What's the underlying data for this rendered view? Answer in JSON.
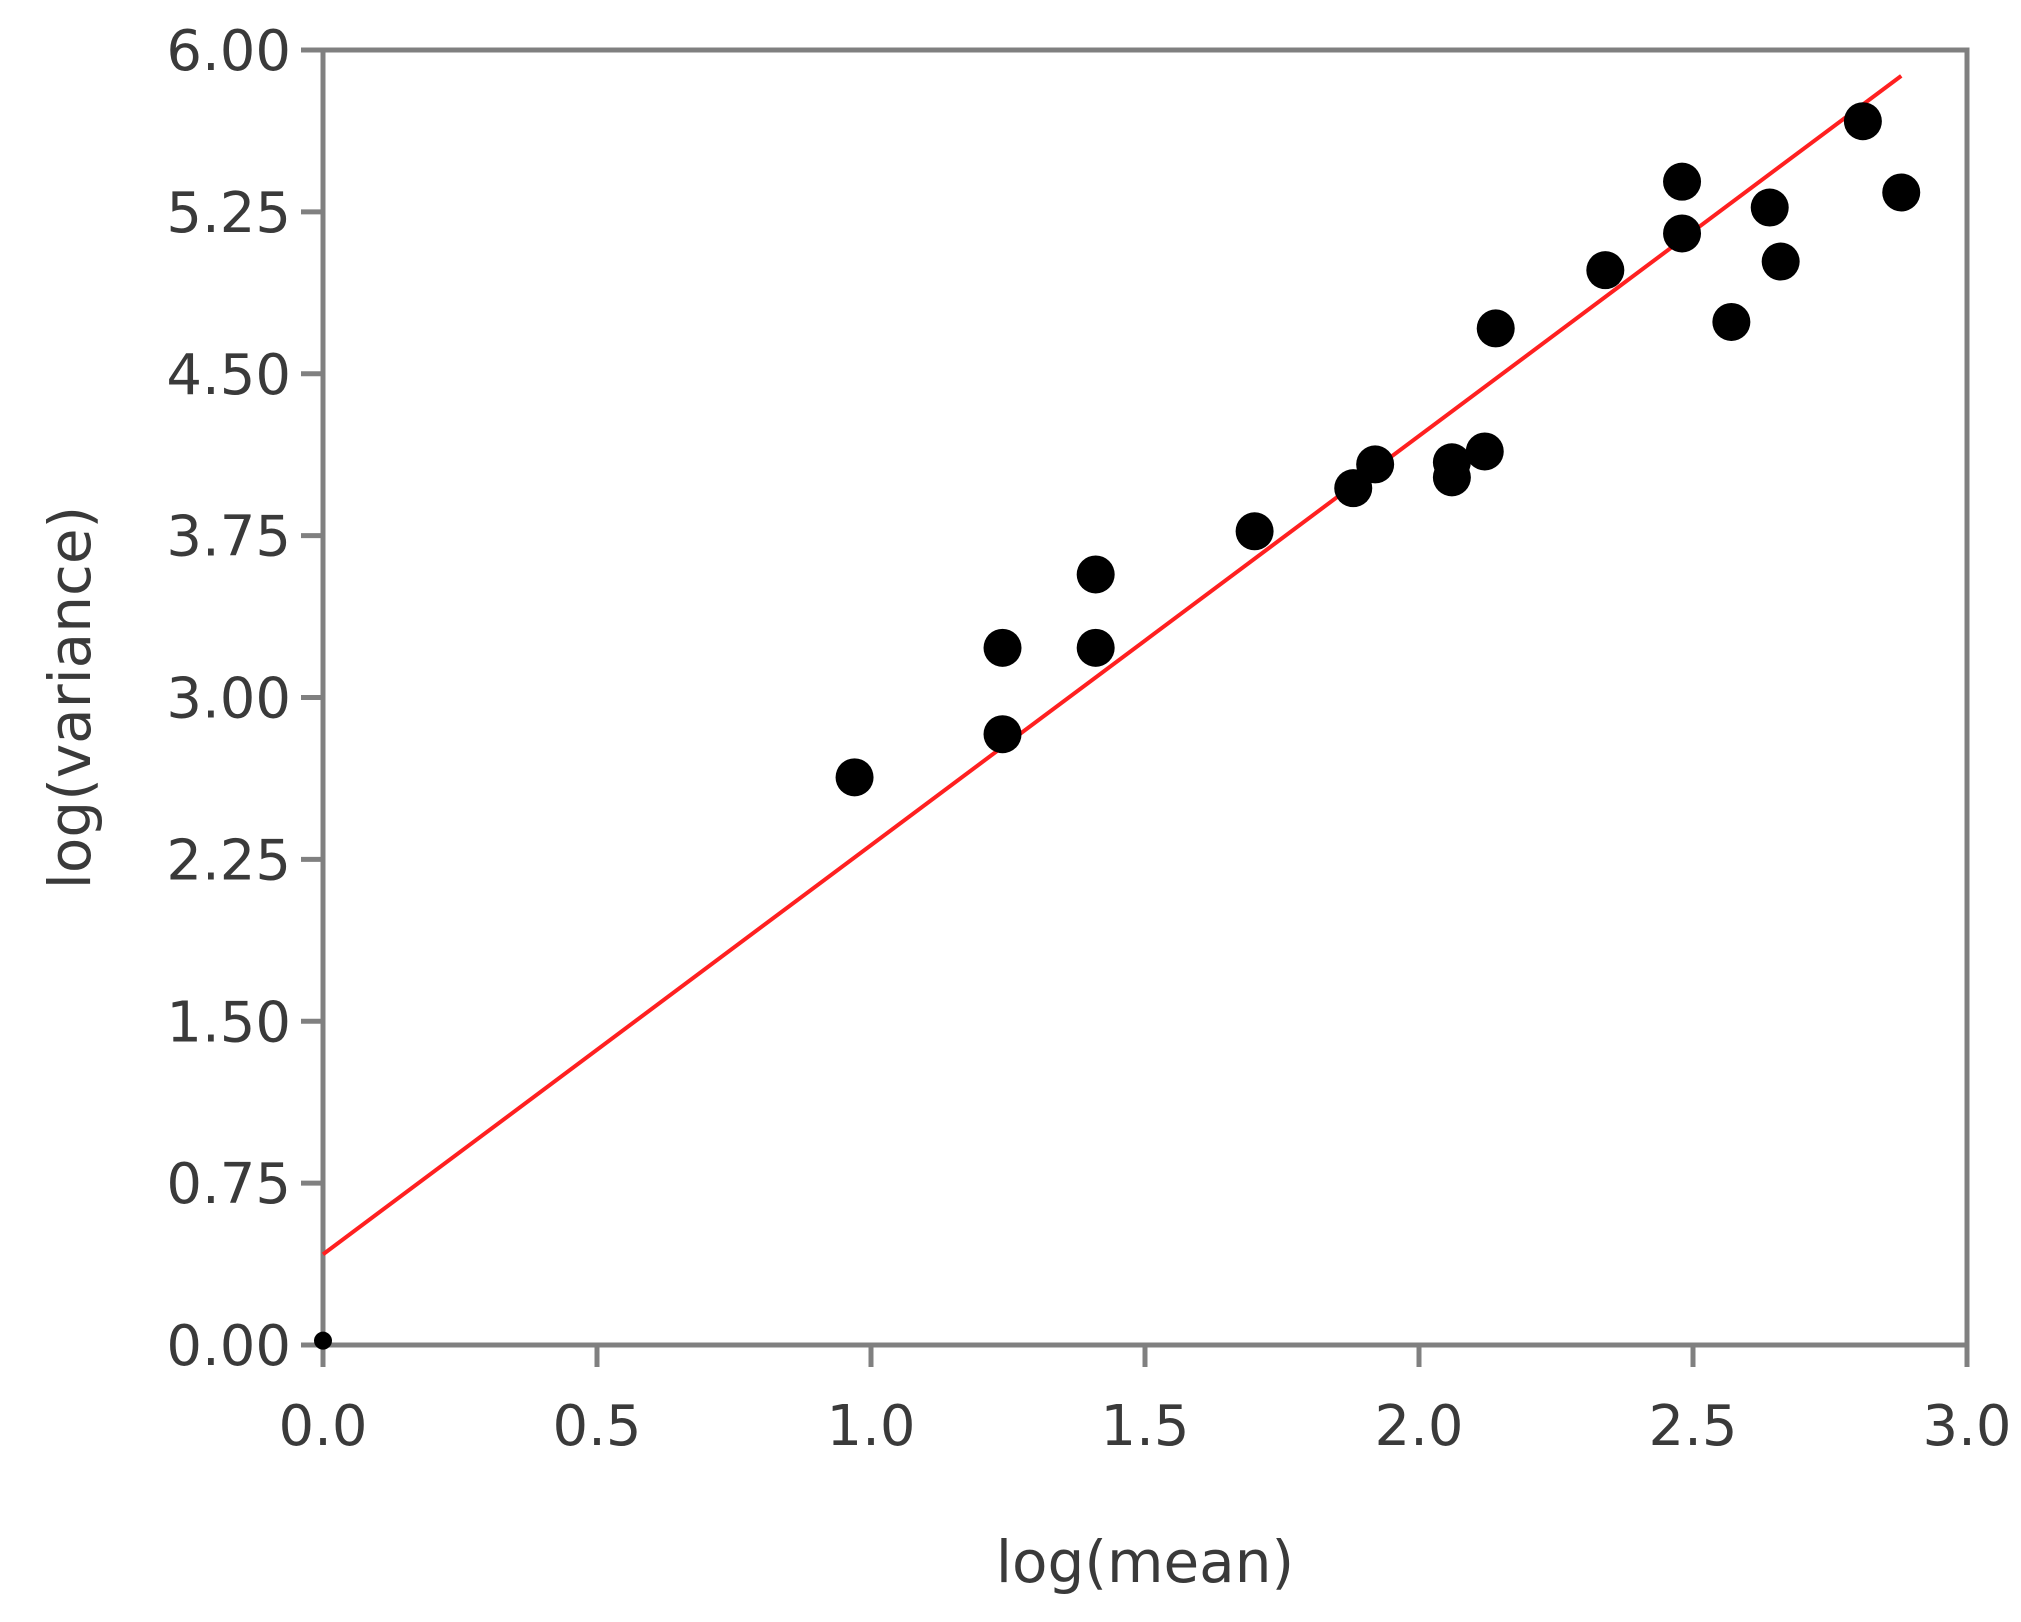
{
  "chart_data": {
    "type": "scatter",
    "title": "",
    "xlabel": "log(mean)",
    "ylabel": "log(variance)",
    "xlim": [
      0.0,
      3.0
    ],
    "ylim": [
      0.0,
      6.0
    ],
    "x_ticks": [
      "0.0",
      "0.5",
      "1.0",
      "1.5",
      "2.0",
      "2.5",
      "3.0"
    ],
    "x_tick_values": [
      0.0,
      0.5,
      1.0,
      1.5,
      2.0,
      2.5,
      3.0
    ],
    "y_ticks": [
      "0.00",
      "0.75",
      "1.50",
      "2.25",
      "3.00",
      "3.75",
      "4.50",
      "5.25",
      "6.00"
    ],
    "y_tick_values": [
      0.0,
      0.75,
      1.5,
      2.25,
      3.0,
      3.75,
      4.5,
      5.25,
      6.0
    ],
    "grid": false,
    "point_color": "#000000",
    "fit_color": "#ff2020",
    "frame_color": "#808080",
    "points": [
      {
        "x": 0.0,
        "y": 0.02
      },
      {
        "x": 0.97,
        "y": 2.63
      },
      {
        "x": 1.24,
        "y": 2.83
      },
      {
        "x": 1.24,
        "y": 3.23
      },
      {
        "x": 1.41,
        "y": 3.23
      },
      {
        "x": 1.41,
        "y": 3.57
      },
      {
        "x": 1.7,
        "y": 3.77
      },
      {
        "x": 1.88,
        "y": 3.97
      },
      {
        "x": 1.92,
        "y": 4.08
      },
      {
        "x": 2.06,
        "y": 4.02
      },
      {
        "x": 2.06,
        "y": 4.09
      },
      {
        "x": 2.12,
        "y": 4.14
      },
      {
        "x": 2.14,
        "y": 4.71
      },
      {
        "x": 2.34,
        "y": 4.98
      },
      {
        "x": 2.48,
        "y": 5.15
      },
      {
        "x": 2.48,
        "y": 5.39
      },
      {
        "x": 2.57,
        "y": 4.74
      },
      {
        "x": 2.64,
        "y": 5.27
      },
      {
        "x": 2.66,
        "y": 5.02
      },
      {
        "x": 2.81,
        "y": 5.67
      },
      {
        "x": 2.88,
        "y": 5.34
      }
    ],
    "fit_line": {
      "x": [
        0.0,
        2.88
      ],
      "y": [
        0.42,
        5.88
      ]
    }
  }
}
